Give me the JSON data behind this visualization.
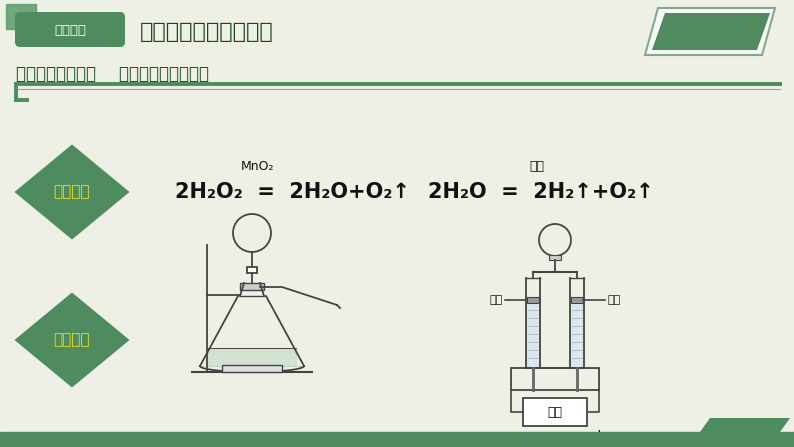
{
  "bg_color": "#eef0e5",
  "title_text": "任务二：制氧剂的选择",
  "subtitle_text": "《活动设计与实施    回忆制取氧气的方法",
  "badge_text": "探索新知",
  "badge_color": "#4e8b5f",
  "badge_sq1_color": "#5a9a6a",
  "badge_sq2_color": "#4e8b5f",
  "title_color": "#1a4a1a",
  "line_color1": "#4e8b5f",
  "line_color2": "#7ab87a",
  "reaction_label": "反应原理",
  "device_label": "制取装置",
  "diamond_color": "#4e8b5f",
  "diamond_text_color": "#e8e020",
  "mno2_text": "MnO₂",
  "tongedian_text": "通电",
  "piston_text": "活塞",
  "power_text": "电源",
  "bottom_bar_color": "#4e8b5f",
  "apparatus_color": "#444444",
  "eq_color": "#111111"
}
